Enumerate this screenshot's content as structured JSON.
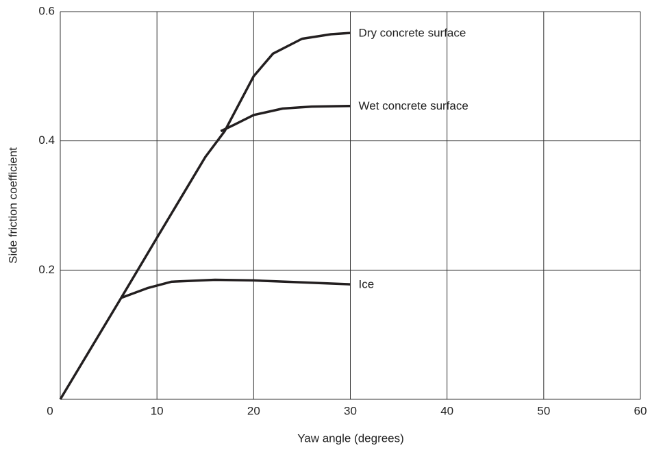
{
  "chart_data": {
    "type": "line",
    "xlabel": "Yaw angle (degrees)",
    "ylabel": "Side friction coefficient",
    "xlim": [
      0,
      60
    ],
    "xticks": [
      0,
      10,
      20,
      30,
      40,
      50,
      60
    ],
    "ylim": [
      0,
      0.6
    ],
    "yticks": [
      0.2,
      0.4,
      0.6
    ],
    "grid": true,
    "series": [
      {
        "name": "Dry concrete surface",
        "color": "#231f20",
        "x": [
          0,
          6.3,
          10,
          15,
          17,
          20,
          22,
          25,
          28,
          30
        ],
        "values": [
          0,
          0.157,
          0.25,
          0.375,
          0.415,
          0.5,
          0.535,
          0.558,
          0.565,
          0.567
        ]
      },
      {
        "name": "Wet concrete surface",
        "color": "#231f20",
        "x": [
          16.6,
          18,
          20,
          23,
          26,
          30
        ],
        "values": [
          0.415,
          0.425,
          0.44,
          0.45,
          0.453,
          0.454
        ]
      },
      {
        "name": "Ice",
        "color": "#231f20",
        "x": [
          6.3,
          9,
          11.5,
          16,
          20,
          25,
          30
        ],
        "values": [
          0.157,
          0.172,
          0.182,
          0.185,
          0.184,
          0.181,
          0.178
        ]
      }
    ]
  }
}
